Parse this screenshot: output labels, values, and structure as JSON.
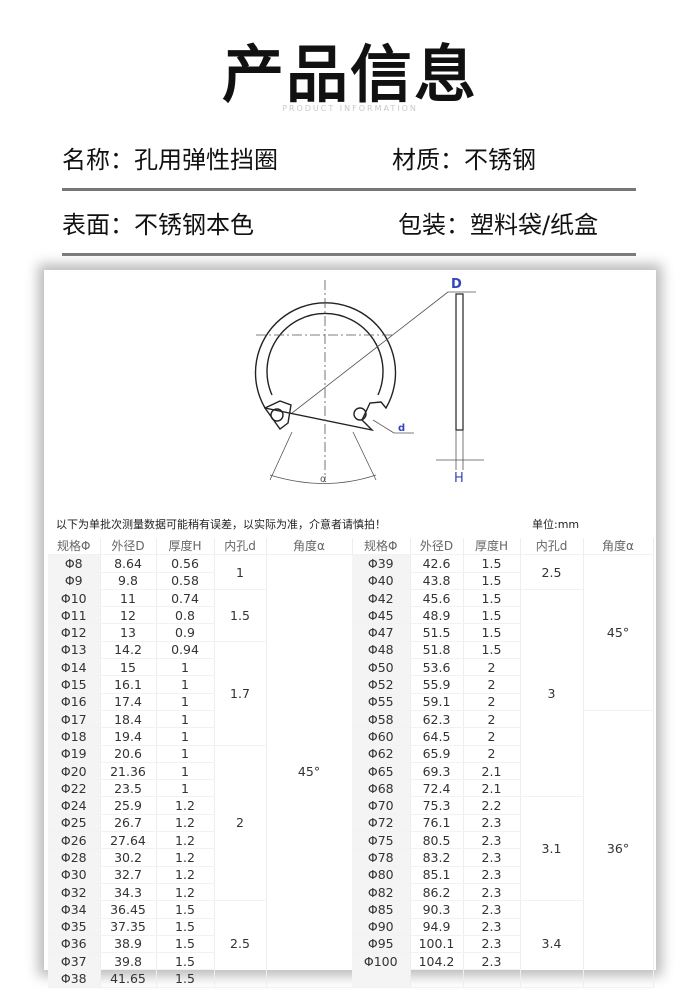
{
  "header": {
    "title": "产品信息",
    "subtitle": "PRODUCT INFORMATION"
  },
  "info": {
    "name": "名称：孔用弹性挡圈",
    "material": "材质：不锈钢",
    "surface": "表面：不锈钢本色",
    "packing": "包装：塑料袋/纸盒"
  },
  "diagram": {
    "label_D": "D",
    "label_d": "d",
    "label_H": "H",
    "label_a": "α"
  },
  "table": {
    "note": "以下为单批次测量数据可能稍有误差，以实际为准，介意者请慎拍！",
    "unit": "单位:mm",
    "headers": [
      "规格Φ",
      "外径D",
      "厚度H",
      "内孔d",
      "角度α"
    ],
    "left": {
      "spec": [
        "Φ8",
        "Φ9",
        "Φ10",
        "Φ11",
        "Φ12",
        "Φ13",
        "Φ14",
        "Φ15",
        "Φ16",
        "Φ17",
        "Φ18",
        "Φ19",
        "Φ20",
        "Φ22",
        "Φ24",
        "Φ25",
        "Φ26",
        "Φ28",
        "Φ30",
        "Φ32",
        "Φ34",
        "Φ35",
        "Φ36",
        "Φ37",
        "Φ38"
      ],
      "D": [
        "8.64",
        "9.8",
        "11",
        "12",
        "13",
        "14.2",
        "15",
        "16.1",
        "17.4",
        "18.4",
        "19.4",
        "20.6",
        "21.36",
        "23.5",
        "25.9",
        "26.7",
        "27.64",
        "30.2",
        "32.7",
        "34.3",
        "36.45",
        "37.35",
        "38.9",
        "39.8",
        "41.65"
      ],
      "H": [
        "0.56",
        "0.58",
        "0.74",
        "0.8",
        "0.9",
        "0.94",
        "1",
        "1",
        "1",
        "1",
        "1",
        "1",
        "1",
        "1",
        "1.2",
        "1.2",
        "1.2",
        "1.2",
        "1.2",
        "1.2",
        "1.5",
        "1.5",
        "1.5",
        "1.5",
        "1.5"
      ],
      "d": [
        {
          "value": "1",
          "rows": 2
        },
        {
          "value": "1.5",
          "rows": 3
        },
        {
          "value": "1.7",
          "rows": 6
        },
        {
          "value": "2",
          "rows": 9
        },
        {
          "value": "2.5",
          "rows": 5
        }
      ],
      "angle": [
        {
          "value": "45°",
          "rows": 25
        }
      ]
    },
    "right": {
      "spec": [
        "Φ39",
        "Φ40",
        "Φ42",
        "Φ45",
        "Φ47",
        "Φ48",
        "Φ50",
        "Φ52",
        "Φ55",
        "Φ58",
        "Φ60",
        "Φ62",
        "Φ65",
        "Φ68",
        "Φ70",
        "Φ72",
        "Φ75",
        "Φ78",
        "Φ80",
        "Φ82",
        "Φ85",
        "Φ90",
        "Φ95",
        "Φ100",
        ""
      ],
      "D": [
        "42.6",
        "43.8",
        "45.6",
        "48.9",
        "51.5",
        "51.8",
        "53.6",
        "55.9",
        "59.1",
        "62.3",
        "64.5",
        "65.9",
        "69.3",
        "72.4",
        "75.3",
        "76.1",
        "80.5",
        "83.2",
        "85.1",
        "86.2",
        "90.3",
        "94.9",
        "100.1",
        "104.2",
        ""
      ],
      "H": [
        "1.5",
        "1.5",
        "1.5",
        "1.5",
        "1.5",
        "1.5",
        "2",
        "2",
        "2",
        "2",
        "2",
        "2",
        "2.1",
        "2.1",
        "2.2",
        "2.3",
        "2.3",
        "2.3",
        "2.3",
        "2.3",
        "2.3",
        "2.3",
        "2.3",
        "2.3",
        ""
      ],
      "d": [
        {
          "value": "2.5",
          "rows": 2
        },
        {
          "value": "3",
          "rows": 12
        },
        {
          "value": "3.1",
          "rows": 6
        },
        {
          "value": "3.4",
          "rows": 5
        }
      ],
      "angle": [
        {
          "value": "45°",
          "rows": 9
        },
        {
          "value": "36°",
          "rows": 16
        }
      ]
    }
  }
}
